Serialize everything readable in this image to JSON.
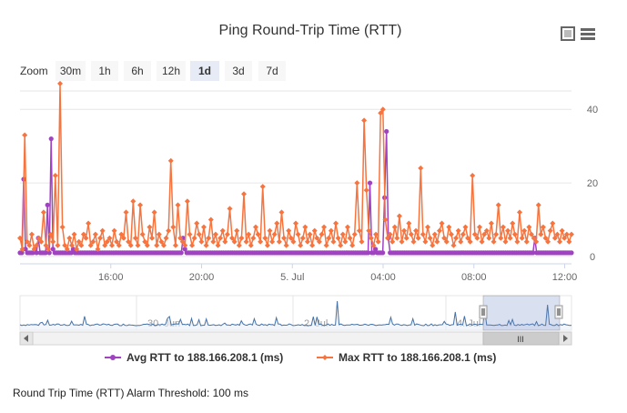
{
  "chart_data": {
    "type": "line",
    "title": "Ping Round-Trip Time (RTT)",
    "zoom": {
      "label": "Zoom",
      "buttons": [
        "30m",
        "1h",
        "6h",
        "12h",
        "1d",
        "3d",
        "7d"
      ],
      "selected": "1d"
    },
    "x_ticks": [
      "16:00",
      "20:00",
      "5. Jul",
      "04:00",
      "08:00",
      "12:00"
    ],
    "y_ticks": [
      0,
      20,
      40
    ],
    "ylim": [
      -2,
      45
    ],
    "x_range_hours": [
      0,
      24.3
    ],
    "series": [
      {
        "name": "Avg RTT to 188.166.208.1 (ms)",
        "color": "#a043c0",
        "marker": "circle",
        "values": [
          1,
          1,
          21,
          2,
          1,
          1,
          1,
          1,
          2,
          1,
          5,
          1,
          1,
          1,
          1,
          14,
          1,
          32,
          2,
          1,
          1,
          1,
          1,
          1,
          1,
          1,
          1,
          1,
          1,
          2,
          1,
          1,
          1,
          1,
          1,
          1,
          1,
          1,
          1,
          1,
          1,
          1,
          1,
          1,
          1,
          1,
          1,
          1,
          1,
          1,
          1,
          1,
          1,
          1,
          1,
          1,
          1,
          1,
          1,
          1,
          1,
          1,
          1,
          1,
          1,
          1,
          1,
          1,
          1,
          1,
          1,
          1,
          1,
          1,
          1,
          1,
          1,
          1,
          1,
          1,
          1,
          1,
          1,
          1,
          1,
          1,
          1,
          1,
          1,
          5,
          2,
          1,
          1,
          1,
          1,
          1,
          1,
          1,
          1,
          1,
          1,
          1,
          1,
          1,
          1,
          1,
          1,
          1,
          1,
          1,
          1,
          1,
          1,
          1,
          1,
          1,
          1,
          1,
          1,
          1,
          1,
          1,
          1,
          1,
          1,
          1,
          1,
          1,
          1,
          1,
          1,
          1,
          1,
          1,
          1,
          1,
          1,
          1,
          1,
          1,
          1,
          1,
          1,
          1,
          1,
          1,
          1,
          1,
          1,
          1,
          1,
          1,
          1,
          1,
          1,
          1,
          1,
          1,
          1,
          1,
          1,
          1,
          1,
          1,
          1,
          1,
          1,
          1,
          1,
          1,
          1,
          1,
          1,
          1,
          1,
          1,
          1,
          1,
          1,
          1,
          1,
          1,
          1,
          1,
          1,
          1,
          1,
          1,
          1,
          1,
          1,
          20,
          1,
          1,
          2,
          1,
          1,
          1,
          1,
          16,
          34,
          5,
          1,
          1,
          1,
          1,
          1,
          1,
          1,
          1,
          1,
          1,
          1,
          1,
          1,
          1,
          1,
          1,
          1,
          1,
          1,
          1,
          1,
          1,
          1,
          1,
          1,
          1,
          1,
          1,
          1,
          1,
          1,
          1,
          1,
          1,
          1,
          1,
          1,
          1,
          1,
          1,
          1,
          1,
          1,
          1,
          1,
          1,
          1,
          1,
          1,
          1,
          1,
          1,
          1,
          1,
          1,
          1,
          1,
          1,
          1,
          1,
          1,
          1,
          1,
          1,
          1,
          1,
          1,
          1,
          1,
          1,
          1,
          1,
          1,
          1,
          1,
          1,
          1,
          1,
          1,
          5,
          1,
          1,
          1,
          1,
          1,
          1,
          1,
          1,
          1,
          1,
          1,
          1,
          1,
          1,
          1,
          1,
          1,
          1,
          1,
          1
        ]
      },
      {
        "name": "Max RTT to 188.166.208.1 (ms)",
        "color": "#f7743f",
        "marker": "diamond",
        "values": [
          5,
          2,
          33,
          4,
          3,
          6,
          2,
          3,
          5,
          4,
          12,
          3,
          2,
          6,
          4,
          22,
          3,
          47,
          8,
          3,
          2,
          5,
          3,
          6,
          2,
          4,
          3,
          6,
          5,
          9,
          3,
          4,
          6,
          2,
          5,
          7,
          3,
          4,
          5,
          3,
          7,
          4,
          3,
          6,
          5,
          12,
          4,
          3,
          15,
          5,
          3,
          14,
          6,
          4,
          3,
          8,
          5,
          12,
          3,
          6,
          4,
          3,
          5,
          7,
          26,
          8,
          3,
          14,
          5,
          4,
          3,
          15,
          6,
          3,
          5,
          9,
          6,
          4,
          8,
          3,
          5,
          10,
          4,
          6,
          3,
          5,
          7,
          4,
          6,
          13,
          5,
          4,
          7,
          3,
          5,
          17,
          4,
          6,
          3,
          5,
          8,
          6,
          4,
          19,
          5,
          3,
          7,
          4,
          6,
          9,
          4,
          12,
          5,
          3,
          7,
          5,
          4,
          9,
          6,
          3,
          5,
          8,
          4,
          6,
          3,
          7,
          5,
          4,
          6,
          8,
          3,
          5,
          7,
          4,
          9,
          5,
          3,
          6,
          4,
          8,
          5,
          3,
          6,
          20,
          7,
          4,
          37,
          18,
          7,
          5,
          3,
          6,
          4,
          39,
          40,
          10,
          5,
          6,
          4,
          8,
          5,
          11,
          4,
          7,
          5,
          9,
          6,
          4,
          7,
          5,
          24,
          6,
          4,
          8,
          5,
          3,
          6,
          4,
          7,
          9,
          5,
          4,
          8,
          6,
          3,
          5,
          7,
          4,
          6,
          8,
          5,
          4,
          22,
          6,
          5,
          8,
          4,
          6,
          7,
          5,
          9,
          4,
          6,
          14,
          5,
          8,
          4,
          7,
          5,
          9,
          6,
          4,
          12,
          5,
          7,
          4,
          8,
          6,
          5,
          4,
          14,
          6,
          8,
          5,
          4,
          7,
          9,
          5,
          6,
          4,
          7,
          5,
          6,
          4,
          6
        ]
      }
    ],
    "navigator": {
      "ticks": [
        "30. Jun",
        "2. Jul",
        "4. Jul"
      ],
      "scroll_grip": "III"
    }
  },
  "alarm_note": "Round Trip Time (RTT) Alarm Threshold: 100 ms",
  "icons": {
    "fullscreen": "fullscreen-icon",
    "menu": "hamburger-menu-icon"
  }
}
